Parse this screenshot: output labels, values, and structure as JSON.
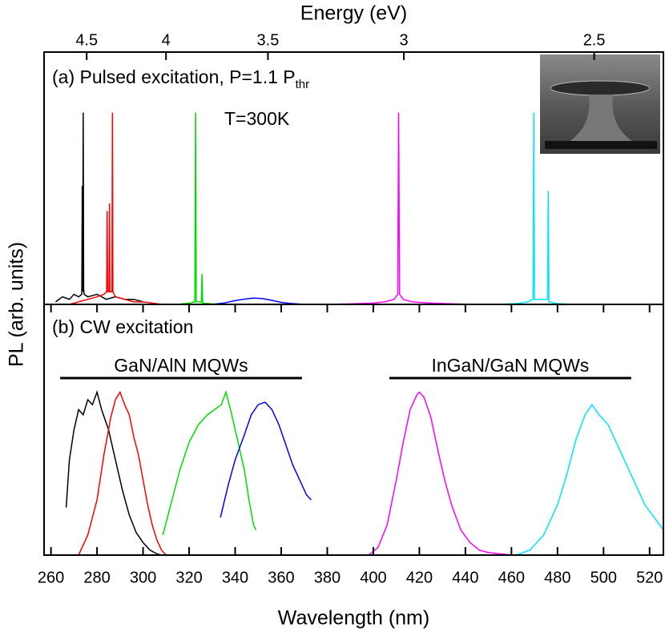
{
  "chart_data": [
    {
      "type": "line",
      "x2label": "Energy (eV)",
      "ylabel": "PL (arb. units)",
      "x2ticks": [
        4.5,
        4,
        3.5,
        3,
        2.5
      ],
      "xlim": [
        257,
        526
      ],
      "ylim": [
        0,
        1
      ],
      "annotations": [
        {
          "text": "(a) Pulsed excitation, P=1.1 P",
          "sub": "thr"
        },
        {
          "text": "T=300K"
        }
      ],
      "series": [
        {
          "color": "#000000",
          "x": [
            262,
            265,
            268,
            270,
            272,
            273.4,
            273.6,
            273.8,
            274.0,
            274.2,
            274.4,
            276,
            280,
            284,
            288,
            292,
            296,
            300
          ],
          "values": [
            0.01,
            0.03,
            0.02,
            0.04,
            0.03,
            0.04,
            0.47,
            0.05,
            0.76,
            0.06,
            0.04,
            0.03,
            0.04,
            0.02,
            0.03,
            0.02,
            0.02,
            0.01
          ]
        },
        {
          "color": "#ff0000",
          "x": [
            268,
            272,
            276,
            280,
            283,
            284.2,
            284.4,
            284.6,
            285.2,
            285.4,
            285.6,
            286.5,
            286.7,
            286.9,
            288,
            292,
            296,
            300,
            304,
            308
          ],
          "values": [
            0,
            0.01,
            0.02,
            0.03,
            0.04,
            0.05,
            0.37,
            0.05,
            0.05,
            0.4,
            0.05,
            0.05,
            0.76,
            0.05,
            0.03,
            0.02,
            0.01,
            0.01,
            0.005,
            0
          ]
        },
        {
          "color": "#00dd00",
          "x": [
            315,
            320,
            322.5,
            322.8,
            323.1,
            325.3,
            325.6,
            325.9,
            330,
            335
          ],
          "values": [
            0,
            0.005,
            0.01,
            0.76,
            0.01,
            0.01,
            0.12,
            0.005,
            0.002,
            0
          ]
        },
        {
          "color": "#0000ff",
          "x": [
            330,
            335,
            340,
            345,
            348,
            352,
            356,
            360,
            365,
            370
          ],
          "values": [
            0,
            0.005,
            0.015,
            0.022,
            0.025,
            0.023,
            0.016,
            0.008,
            0.003,
            0
          ]
        },
        {
          "color": "#ff00ff",
          "x": [
            380,
            390,
            400,
            405,
            409,
            410.6,
            411,
            411.4,
            413,
            417,
            425,
            435,
            445
          ],
          "values": [
            0,
            0.002,
            0.005,
            0.01,
            0.02,
            0.04,
            0.76,
            0.04,
            0.02,
            0.01,
            0.005,
            0.002,
            0
          ]
        },
        {
          "color": "#00e5ff",
          "x": [
            455,
            462,
            467,
            469.4,
            469.7,
            470,
            472,
            475.7,
            476,
            476.3,
            480,
            486
          ],
          "values": [
            0,
            0.003,
            0.01,
            0.02,
            0.76,
            0.02,
            0.02,
            0.02,
            0.45,
            0.01,
            0.003,
            0
          ]
        }
      ]
    },
    {
      "type": "line",
      "xlabel": "Wavelength (nm)",
      "xticks": [
        260,
        280,
        300,
        320,
        340,
        360,
        380,
        400,
        420,
        440,
        460,
        480,
        500,
        520
      ],
      "xlim": [
        257,
        526
      ],
      "ylim": [
        0,
        1
      ],
      "annotations": [
        {
          "text": "(b) CW excitation"
        },
        {
          "text": "GaN/AlN MQWs",
          "span": [
            264,
            369
          ]
        },
        {
          "text": "InGaN/GaN MQWs",
          "span": [
            407,
            512
          ]
        }
      ],
      "series": [
        {
          "color": "#000000",
          "x": [
            266.6,
            268,
            270,
            272,
            274,
            276,
            278,
            280,
            282,
            285,
            288,
            291,
            294,
            297,
            300,
            303,
            306,
            308
          ],
          "values": [
            0.19,
            0.38,
            0.5,
            0.58,
            0.56,
            0.62,
            0.6,
            0.65,
            0.58,
            0.5,
            0.38,
            0.26,
            0.16,
            0.09,
            0.05,
            0.02,
            0.005,
            0
          ]
        },
        {
          "color": "#ff0000",
          "x": [
            272,
            276,
            280,
            283,
            286,
            288,
            290,
            292,
            294,
            296,
            298,
            300,
            302,
            304,
            306,
            308,
            310
          ],
          "values": [
            0,
            0.08,
            0.22,
            0.4,
            0.55,
            0.62,
            0.65,
            0.6,
            0.56,
            0.47,
            0.4,
            0.3,
            0.2,
            0.12,
            0.06,
            0.02,
            0
          ]
        },
        {
          "color": "#00dd00",
          "x": [
            308.6,
            312,
            316,
            320,
            324,
            328,
            331,
            334,
            336,
            338,
            340,
            342,
            344,
            346,
            348,
            349
          ],
          "values": [
            0.08,
            0.2,
            0.34,
            0.45,
            0.52,
            0.56,
            0.58,
            0.6,
            0.65,
            0.58,
            0.5,
            0.42,
            0.34,
            0.22,
            0.12,
            0.1
          ]
        },
        {
          "color": "#0000ff",
          "x": [
            333.6,
            337,
            340,
            344,
            347,
            350,
            353,
            356,
            359,
            362,
            365,
            368,
            371,
            373
          ],
          "values": [
            0.15,
            0.28,
            0.38,
            0.48,
            0.56,
            0.6,
            0.61,
            0.58,
            0.52,
            0.44,
            0.36,
            0.3,
            0.24,
            0.22
          ]
        },
        {
          "color": "#ff00ff",
          "x": [
            398,
            402,
            406,
            410,
            413,
            416,
            419,
            420,
            422,
            425,
            428,
            431,
            434,
            438,
            442,
            446,
            450,
            455,
            460
          ],
          "values": [
            0,
            0.03,
            0.12,
            0.3,
            0.45,
            0.58,
            0.64,
            0.65,
            0.63,
            0.55,
            0.42,
            0.3,
            0.2,
            0.1,
            0.05,
            0.02,
            0.01,
            0.005,
            0
          ]
        },
        {
          "color": "#00e5ff",
          "x": [
            462,
            468,
            474,
            480,
            484,
            488,
            492,
            495,
            498,
            502,
            506,
            510,
            514,
            518,
            522,
            526
          ],
          "values": [
            0,
            0.02,
            0.08,
            0.2,
            0.32,
            0.46,
            0.56,
            0.6,
            0.56,
            0.52,
            0.44,
            0.36,
            0.28,
            0.2,
            0.15,
            0.1
          ]
        }
      ]
    }
  ]
}
